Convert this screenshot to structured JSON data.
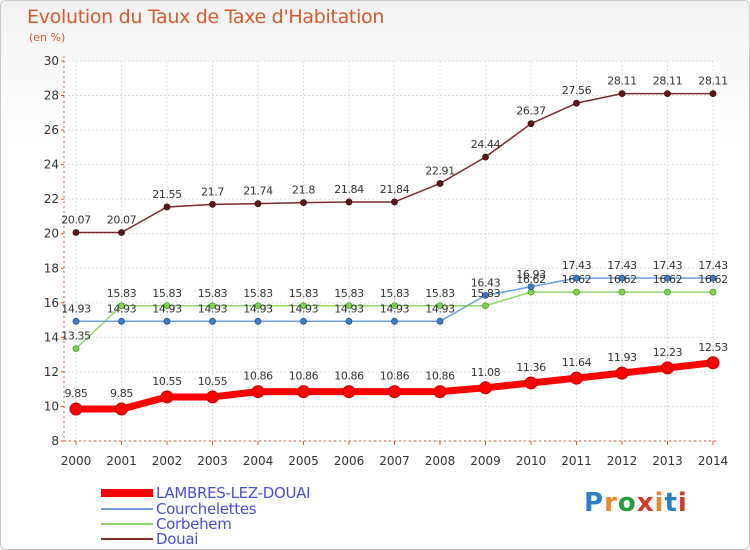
{
  "header": {
    "title": "Evolution du Taux de Taxe d'Habitation",
    "unit": "(en %)"
  },
  "logo": {
    "letters": [
      "P",
      "r",
      "o",
      "x",
      "i",
      "t",
      "i"
    ],
    "colors": [
      "#2b7fc4",
      "#e8882a",
      "#2b9a3c",
      "#d43a2a",
      "#e8882a",
      "#2b7fc4",
      "#d43a2a"
    ]
  },
  "chart_data": {
    "type": "line",
    "title": "Evolution du Taux de Taxe d'Habitation",
    "ylabel": "(en %)",
    "xlabel": "",
    "ylim": [
      8,
      30
    ],
    "yticks": [
      "8",
      "10",
      "12",
      "14",
      "16",
      "18",
      "20",
      "22",
      "24",
      "26",
      "28",
      "30"
    ],
    "categories": [
      "2000",
      "2001",
      "2002",
      "2003",
      "2004",
      "2005",
      "2006",
      "2007",
      "2008",
      "2009",
      "2010",
      "2011",
      "2012",
      "2013",
      "2014"
    ],
    "grid": true,
    "legend_position": "bottom-left",
    "series": [
      {
        "name": "LAMBRES-LEZ-DOUAI",
        "color": "#ff0000",
        "values": [
          9.85,
          9.85,
          10.55,
          10.55,
          10.86,
          10.86,
          10.86,
          10.86,
          10.86,
          11.08,
          11.36,
          11.64,
          11.93,
          12.23,
          12.53
        ],
        "labels": [
          "9.85",
          "9.85",
          "10.55",
          "10.55",
          "10.86",
          "10.86",
          "10.86",
          "10.86",
          "10.86",
          "11.08",
          "11.36",
          "11.64",
          "11.93",
          "12.23",
          "12.53"
        ]
      },
      {
        "name": "Courchelettes",
        "color": "#6f9fd8",
        "values": [
          14.93,
          14.93,
          14.93,
          14.93,
          14.93,
          14.93,
          14.93,
          14.93,
          14.93,
          16.43,
          16.93,
          17.43,
          17.43,
          17.43,
          17.43
        ],
        "labels": [
          "14.93",
          "14.93",
          "14.93",
          "14.93",
          "14.93",
          "14.93",
          "14.93",
          "14.93",
          "14.93",
          "16.43",
          "16.93",
          "17.43",
          "17.43",
          "17.43",
          "17.43"
        ]
      },
      {
        "name": "Corbehem",
        "color": "#8fd86a",
        "values": [
          13.35,
          15.83,
          15.83,
          15.83,
          15.83,
          15.83,
          15.83,
          15.83,
          15.83,
          15.83,
          16.62,
          16.62,
          16.62,
          16.62,
          16.62
        ],
        "labels": [
          "13.35",
          "15.83",
          "15.83",
          "15.83",
          "15.83",
          "15.83",
          "15.83",
          "15.83",
          "15.83",
          "15.83",
          "16.62",
          "16.62",
          "16.62",
          "16.62",
          "16.62"
        ]
      },
      {
        "name": "Douai",
        "color": "#7a2a2a",
        "values": [
          20.07,
          20.07,
          21.55,
          21.7,
          21.74,
          21.8,
          21.84,
          21.84,
          22.91,
          24.44,
          26.37,
          27.56,
          28.11,
          28.11,
          28.11
        ],
        "labels": [
          "20.07",
          "20.07",
          "21.55",
          "21.7",
          "21.74",
          "21.8",
          "21.84",
          "21.84",
          "22.91",
          "24.44",
          "26.37",
          "27.56",
          "28.11",
          "28.11",
          "28.11"
        ]
      }
    ]
  }
}
